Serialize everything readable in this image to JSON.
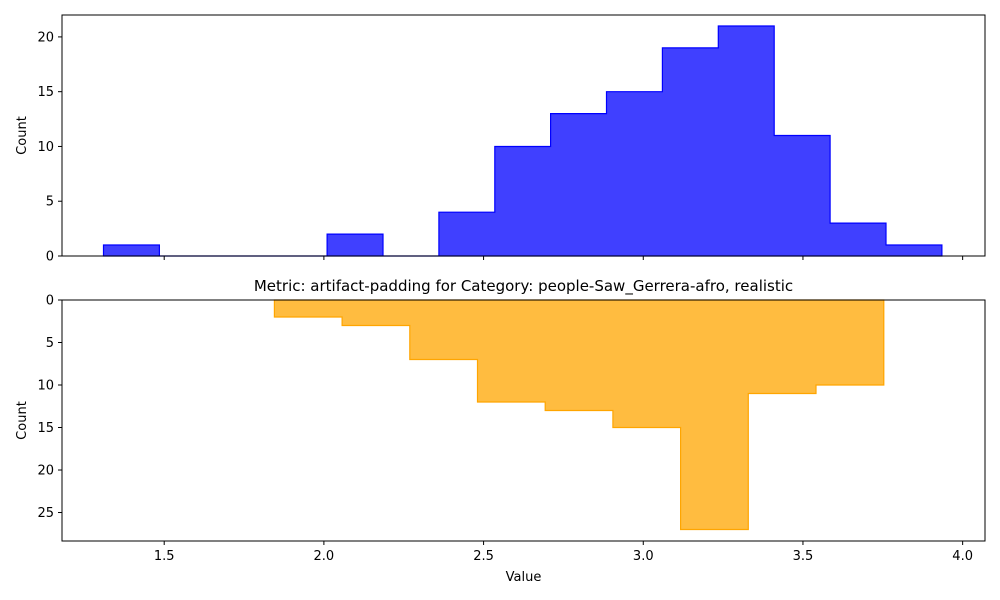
{
  "chart_data": [
    {
      "type": "histogram",
      "ylabel": "Count",
      "xlabel": "",
      "title": "",
      "color": "#0000ff",
      "fill_alpha": 0.75,
      "orientation": "up",
      "bin_edges": [
        1.31,
        1.485,
        1.66,
        1.835,
        2.01,
        2.185,
        2.36,
        2.535,
        2.71,
        2.885,
        3.06,
        3.235,
        3.41,
        3.585,
        3.76,
        3.935
      ],
      "counts": [
        1,
        0,
        0,
        0,
        2,
        0,
        4,
        10,
        13,
        15,
        19,
        21,
        11,
        3,
        1
      ],
      "xlim": [
        1.18,
        4.07
      ],
      "ylim": [
        0,
        22
      ],
      "xticks": [],
      "yticks": [
        0,
        5,
        10,
        15,
        20
      ],
      "ytick_labels": [
        "0",
        "5",
        "10",
        "15",
        "20"
      ]
    },
    {
      "type": "histogram",
      "title": "Metric: artifact-padding for Category: people-Saw_Gerrera-afro, realistic",
      "xlabel": "Value",
      "ylabel": "Count",
      "color": "#ffa500",
      "fill_alpha": 0.75,
      "orientation": "down",
      "bin_edges": [
        1.845,
        2.057,
        2.269,
        2.481,
        2.693,
        2.905,
        3.117,
        3.329,
        3.541,
        3.753
      ],
      "counts": [
        2,
        3,
        7,
        12,
        13,
        15,
        27,
        11,
        10
      ],
      "xlim": [
        1.18,
        4.07
      ],
      "ylim": [
        0,
        28.35
      ],
      "xticks": [
        1.5,
        2.0,
        2.5,
        3.0,
        3.5,
        4.0
      ],
      "xtick_labels": [
        "1.5",
        "2.0",
        "2.5",
        "3.0",
        "3.5",
        "4.0"
      ],
      "yticks": [
        0,
        5,
        10,
        15,
        20,
        25
      ],
      "ytick_labels": [
        "0",
        "5",
        "10",
        "15",
        "20",
        "25"
      ]
    }
  ]
}
